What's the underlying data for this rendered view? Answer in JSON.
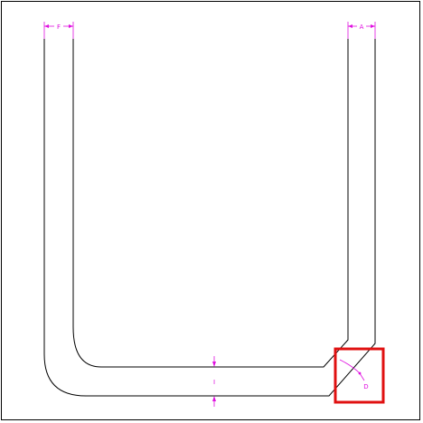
{
  "drawing": {
    "outline_color": "#000000",
    "dimension_color": "#e010e0",
    "highlight_color": "#e01010",
    "labels": {
      "left_leg_width": "F",
      "right_leg_width": "A",
      "bottom_thickness": "I",
      "corner_bevel": "D"
    }
  }
}
